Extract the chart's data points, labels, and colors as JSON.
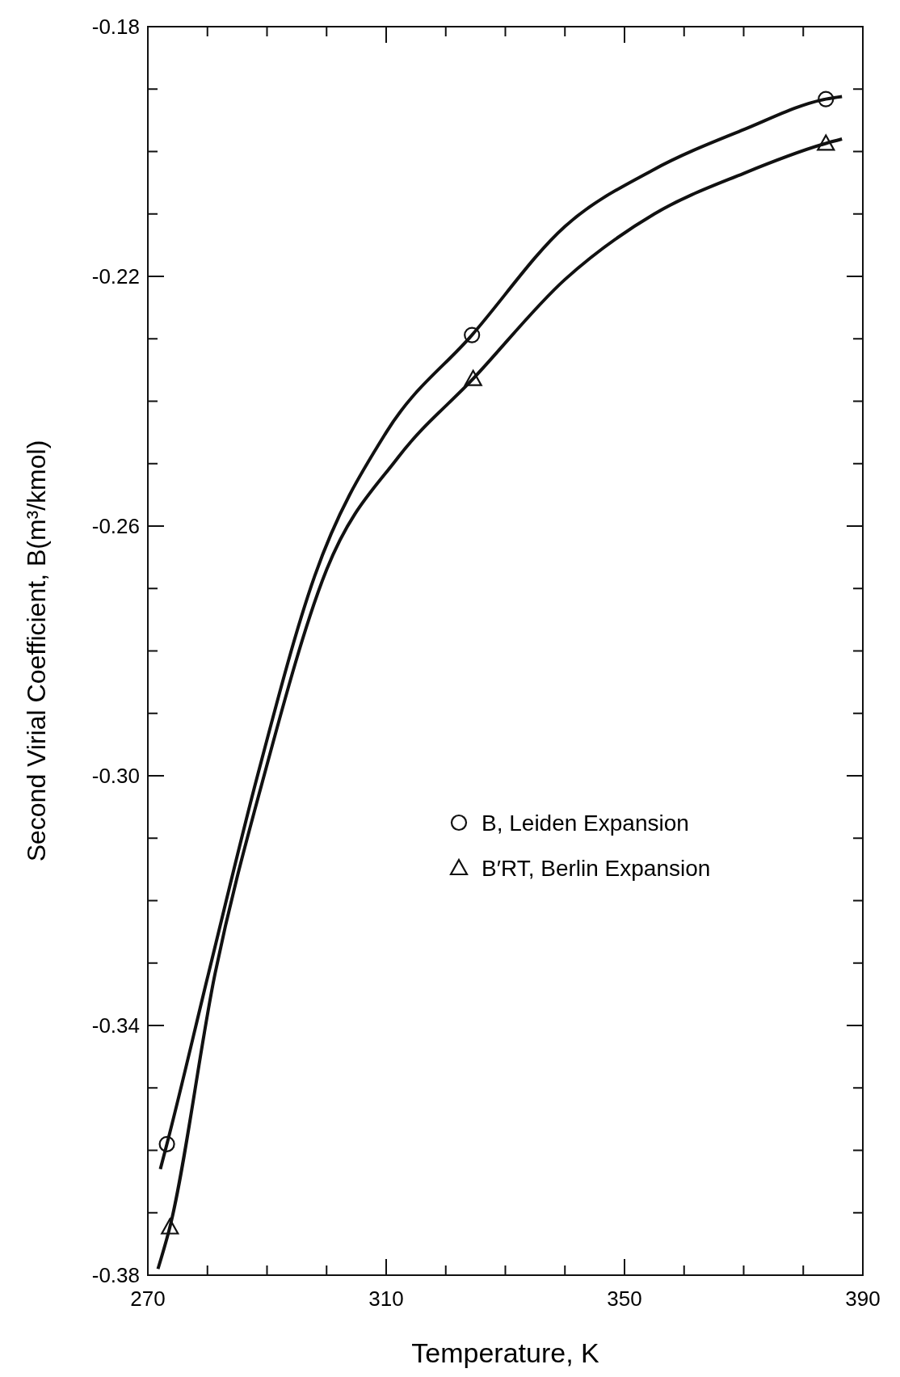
{
  "chart_data": {
    "type": "line",
    "xlabel": "Temperature, K",
    "ylabel": "Second Virial Coefficient, B(m³/kmol)",
    "xlim": [
      270,
      390
    ],
    "ylim": [
      -0.38,
      -0.18
    ],
    "xticks": [
      270,
      {
        "value": 280,
        "label": null
      },
      {
        "value": 290,
        "label": null
      },
      {
        "value": 300,
        "label": null
      },
      310,
      {
        "value": 320,
        "label": null
      },
      {
        "value": 330,
        "label": null
      },
      {
        "value": 340,
        "label": null
      },
      350,
      {
        "value": 360,
        "label": null
      },
      {
        "value": 370,
        "label": null
      },
      {
        "value": 380,
        "label": null
      },
      390
    ],
    "yticks": [
      {
        "value": -0.38,
        "label": "-0.38"
      },
      {
        "value": -0.37,
        "label": null
      },
      {
        "value": -0.36,
        "label": null
      },
      {
        "value": -0.35,
        "label": null
      },
      {
        "value": -0.34,
        "label": "-0.34"
      },
      {
        "value": -0.33,
        "label": null
      },
      {
        "value": -0.32,
        "label": null
      },
      {
        "value": -0.31,
        "label": null
      },
      {
        "value": -0.3,
        "label": "-0.30"
      },
      {
        "value": -0.29,
        "label": null
      },
      {
        "value": -0.28,
        "label": null
      },
      {
        "value": -0.27,
        "label": null
      },
      {
        "value": -0.26,
        "label": "-0.26"
      },
      {
        "value": -0.25,
        "label": null
      },
      {
        "value": -0.24,
        "label": null
      },
      {
        "value": -0.23,
        "label": null
      },
      {
        "value": -0.22,
        "label": "-0.22"
      },
      {
        "value": -0.21,
        "label": null
      },
      {
        "value": -0.2,
        "label": null
      },
      {
        "value": -0.19,
        "label": null
      },
      {
        "value": -0.18,
        "label": "-0.18"
      }
    ],
    "grid": false,
    "legend": "right",
    "line_style": "solid",
    "series": [
      {
        "type": "scatter",
        "name": "B, Leiden Expansion",
        "color": "#111111",
        "marker": "circle",
        "x": [
          273.2,
          324.4,
          383.8
        ],
        "values": [
          -0.359,
          -0.2294,
          -0.1916
        ]
      },
      {
        "type": "scatter",
        "name": "B′RT, Berlin Expansion",
        "color": "#111111",
        "marker": "triangle",
        "x": [
          273.7,
          324.6,
          383.8
        ],
        "values": [
          -0.3723,
          -0.2364,
          -0.1987
        ]
      },
      {
        "color": "#111111",
        "marker": "none",
        "x": [
          272.1,
          273.2,
          280.2,
          288.4,
          298,
          310,
          324.4,
          340,
          354.7,
          370,
          383.8,
          386.5
        ],
        "values": [
          -0.363,
          -0.359,
          -0.3316,
          -0.3,
          -0.268,
          -0.245,
          -0.2294,
          -0.212,
          -0.203,
          -0.1965,
          -0.1916,
          -0.1912
        ]
      },
      {
        "color": "#111111",
        "marker": "none",
        "x": [
          271.7,
          273.7,
          281.3,
          289.5,
          300,
          312,
          324.6,
          340,
          355,
          370,
          383.8,
          386.5
        ],
        "values": [
          -0.379,
          -0.3723,
          -0.3316,
          -0.3,
          -0.267,
          -0.249,
          -0.2364,
          -0.2205,
          -0.21,
          -0.2035,
          -0.1987,
          -0.198
        ]
      }
    ]
  }
}
